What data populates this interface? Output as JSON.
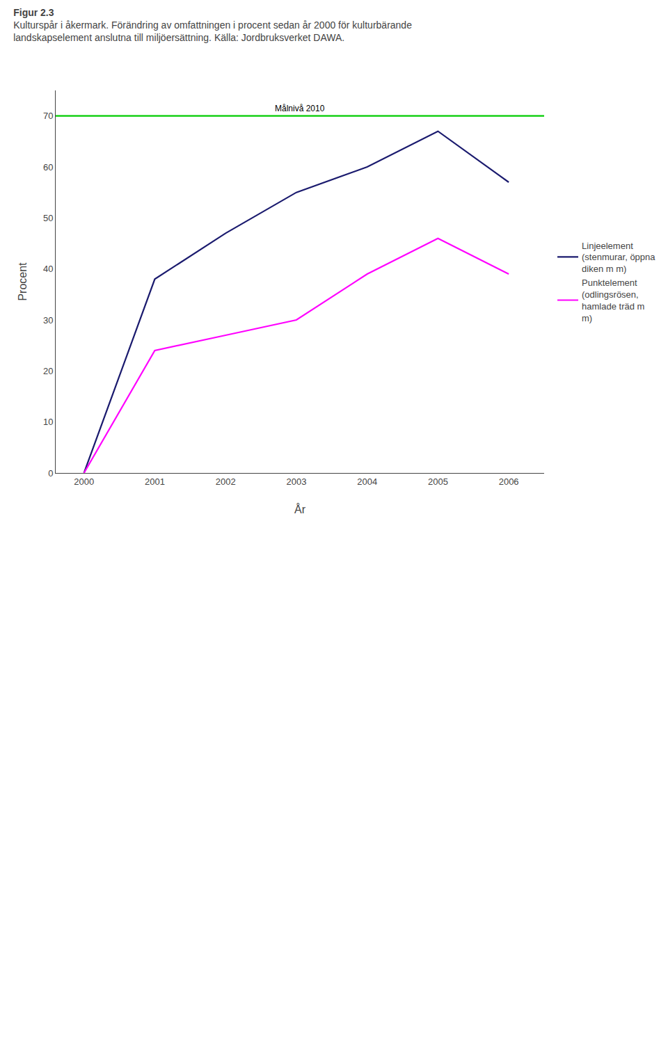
{
  "chart_data": {
    "type": "line",
    "title": "Figur 2.3",
    "subtitle": "Kulturspår i åkermark. Förändring av omfattningen i procent sedan år 2000 för kulturbärande\nlandskapselement anslutna till miljöersättning. Källa: Jordbruksverket DAWA.",
    "x": [
      2000,
      2001,
      2002,
      2003,
      2004,
      2005,
      2006
    ],
    "series": [
      {
        "name": "Linjeelement\n(stenmurar, öppna\ndiken m m)",
        "color": "#1a1a6e",
        "values": [
          0,
          38,
          47,
          55,
          60,
          67,
          57
        ]
      },
      {
        "name": "Punktelement\n(odlingsrösen,\nhamlade träd m\nm)",
        "color": "#ff00ff",
        "values": [
          0,
          24,
          27,
          30,
          39,
          46,
          39
        ]
      }
    ],
    "goal": {
      "value": 70,
      "label": "Målnivå 2010",
      "color": "#00cc00"
    },
    "xlabel": "År",
    "ylabel": "Procent",
    "xlim": [
      1999.6,
      2006.5
    ],
    "xticks": [
      2000,
      2001,
      2002,
      2003,
      2004,
      2005,
      2006
    ],
    "ylim": [
      0,
      75
    ],
    "yticks": [
      0,
      10,
      20,
      30,
      40,
      50,
      60,
      70
    ],
    "grid": false,
    "legend": "right"
  }
}
